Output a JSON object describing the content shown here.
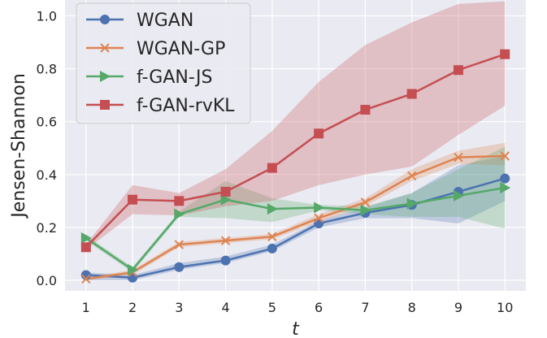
{
  "chart_data": {
    "type": "line",
    "title": "",
    "xlabel": "t",
    "ylabel": "Jensen-Shannon",
    "x": [
      1,
      2,
      3,
      4,
      5,
      6,
      7,
      8,
      9,
      10
    ],
    "xlim": [
      0.55,
      10.45
    ],
    "ylim": [
      -0.04,
      1.06
    ],
    "xticks": [
      1,
      2,
      3,
      4,
      5,
      6,
      7,
      8,
      9,
      10
    ],
    "yticks": [
      0.0,
      0.2,
      0.4,
      0.6,
      0.8,
      1.0
    ],
    "ytick_labels": [
      "0.0",
      "0.2",
      "0.4",
      "0.6",
      "0.8",
      "1.0"
    ],
    "grid": true,
    "legend_position": "top-left",
    "series": [
      {
        "name": "WGAN",
        "color": "#4c72b0",
        "marker": "circle",
        "values": [
          0.02,
          0.01,
          0.05,
          0.075,
          0.12,
          0.215,
          0.255,
          0.285,
          0.335,
          0.385
        ],
        "band_low": [
          0.0,
          0.0,
          0.04,
          0.065,
          0.11,
          0.2,
          0.235,
          0.235,
          0.215,
          0.3
        ],
        "band_high": [
          0.03,
          0.02,
          0.065,
          0.09,
          0.135,
          0.225,
          0.275,
          0.33,
          0.435,
          0.47
        ]
      },
      {
        "name": "WGAN-GP",
        "color": "#dd8452",
        "marker": "x",
        "values": [
          0.005,
          0.03,
          0.135,
          0.15,
          0.165,
          0.235,
          0.295,
          0.395,
          0.465,
          0.47
        ],
        "band_low": [
          0.0,
          0.02,
          0.125,
          0.14,
          0.155,
          0.22,
          0.28,
          0.375,
          0.44,
          0.435
        ],
        "band_high": [
          0.01,
          0.04,
          0.145,
          0.16,
          0.175,
          0.25,
          0.31,
          0.42,
          0.49,
          0.52
        ]
      },
      {
        "name": "f-GAN-JS",
        "color": "#55a868",
        "marker": "triangle",
        "values": [
          0.16,
          0.04,
          0.25,
          0.305,
          0.27,
          0.275,
          0.265,
          0.29,
          0.32,
          0.35
        ],
        "band_low": [
          0.15,
          0.03,
          0.24,
          0.235,
          0.22,
          0.265,
          0.25,
          0.24,
          0.24,
          0.195
        ],
        "band_high": [
          0.17,
          0.05,
          0.26,
          0.375,
          0.31,
          0.285,
          0.28,
          0.33,
          0.42,
          0.505
        ]
      },
      {
        "name": "f-GAN-rvKL",
        "color": "#c44e52",
        "marker": "square",
        "values": [
          0.125,
          0.305,
          0.3,
          0.335,
          0.425,
          0.555,
          0.645,
          0.705,
          0.795,
          0.855
        ],
        "band_low": [
          0.115,
          0.25,
          0.245,
          0.28,
          0.3,
          0.36,
          0.4,
          0.43,
          0.55,
          0.66
        ],
        "band_high": [
          0.135,
          0.36,
          0.33,
          0.42,
          0.565,
          0.75,
          0.89,
          0.975,
          1.045,
          1.055
        ]
      }
    ]
  }
}
